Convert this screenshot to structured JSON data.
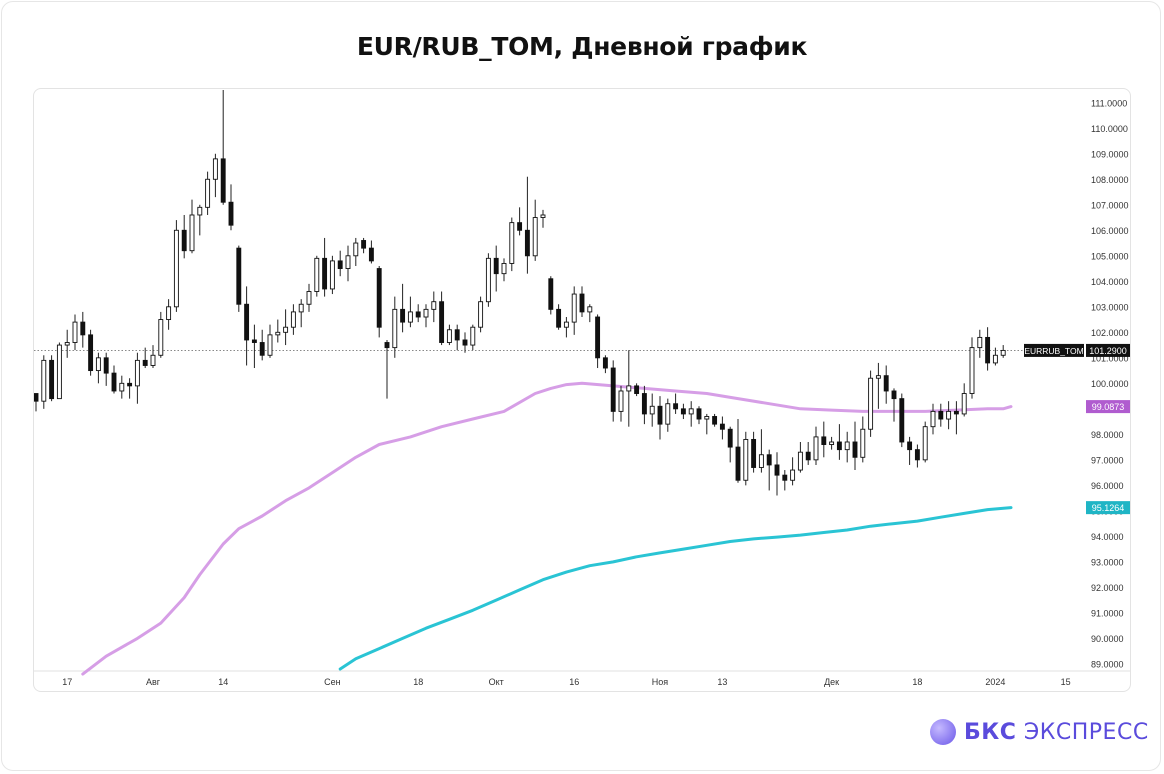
{
  "header": {
    "title": "EUR/RUB_TOM, Дневной график"
  },
  "brand": {
    "bold": "БКС",
    "rest": " ЭКСПРЕСС"
  },
  "chart_data": {
    "type": "candlestick",
    "ylim": [
      88.8,
      111.5
    ],
    "ytick_values": [
      89,
      90,
      91,
      92,
      93,
      94,
      95,
      96,
      97,
      98,
      99,
      100,
      101,
      102,
      103,
      104,
      105,
      106,
      107,
      108,
      109,
      110,
      111
    ],
    "ytick_labels": [
      "89.0000",
      "90.0000",
      "91.0000",
      "92.0000",
      "93.0000",
      "94.0000",
      "95.0000",
      "96.0000",
      "97.0000",
      "98.0000",
      "99.0000",
      "100.0000",
      "101.0000",
      "102.0000",
      "103.0000",
      "104.0000",
      "105.0000",
      "106.0000",
      "107.0000",
      "108.0000",
      "109.0000",
      "110.0000",
      "111.0000"
    ],
    "xticks": [
      {
        "label": "17",
        "index": 4
      },
      {
        "label": "Авг",
        "index": 15
      },
      {
        "label": "14",
        "index": 24
      },
      {
        "label": "Сен",
        "index": 38
      },
      {
        "label": "18",
        "index": 49
      },
      {
        "label": "Окт",
        "index": 59
      },
      {
        "label": "16",
        "index": 69
      },
      {
        "label": "Ноя",
        "index": 80
      },
      {
        "label": "13",
        "index": 88
      },
      {
        "label": "Дек",
        "index": 102
      },
      {
        "label": "18",
        "index": 113
      },
      {
        "label": "2024",
        "index": 123
      },
      {
        "label": "15",
        "index": 132
      }
    ],
    "last_price": {
      "name": "EURRUB_TOM",
      "value": "101.2900",
      "y": 101.29
    },
    "series": [
      {
        "name": "",
        "color": "#d69ee6",
        "label": "99.0873",
        "label_color": "#b05ccf",
        "last": 99.0873,
        "points": [
          [
            6,
            88.6
          ],
          [
            9,
            89.3
          ],
          [
            13,
            90.0
          ],
          [
            16,
            90.6
          ],
          [
            19,
            91.6
          ],
          [
            21,
            92.5
          ],
          [
            24,
            93.7
          ],
          [
            26,
            94.3
          ],
          [
            29,
            94.8
          ],
          [
            32,
            95.4
          ],
          [
            35,
            95.9
          ],
          [
            38,
            96.5
          ],
          [
            41,
            97.1
          ],
          [
            44,
            97.6
          ],
          [
            48,
            97.9
          ],
          [
            52,
            98.3
          ],
          [
            56,
            98.6
          ],
          [
            60,
            98.9
          ],
          [
            64,
            99.6
          ],
          [
            66,
            99.8
          ],
          [
            68,
            99.95
          ],
          [
            70,
            100.0
          ],
          [
            74,
            99.9
          ],
          [
            78,
            99.8
          ],
          [
            82,
            99.7
          ],
          [
            86,
            99.6
          ],
          [
            90,
            99.4
          ],
          [
            94,
            99.2
          ],
          [
            98,
            99.0
          ],
          [
            102,
            98.95
          ],
          [
            106,
            98.9
          ],
          [
            110,
            98.9
          ],
          [
            114,
            98.9
          ],
          [
            118,
            98.95
          ],
          [
            122,
            99.0
          ],
          [
            124,
            99.0
          ],
          [
            125,
            99.0873
          ]
        ]
      },
      {
        "name": "",
        "color": "#2ac4d4",
        "label": "95.1264",
        "label_color": "#1fb5c5",
        "last": 95.1264,
        "points": [
          [
            39,
            88.8
          ],
          [
            41,
            89.2
          ],
          [
            44,
            89.6
          ],
          [
            47,
            90.0
          ],
          [
            50,
            90.4
          ],
          [
            53,
            90.75
          ],
          [
            56,
            91.1
          ],
          [
            59,
            91.5
          ],
          [
            62,
            91.9
          ],
          [
            65,
            92.3
          ],
          [
            68,
            92.6
          ],
          [
            71,
            92.85
          ],
          [
            74,
            93.0
          ],
          [
            77,
            93.2
          ],
          [
            80,
            93.35
          ],
          [
            83,
            93.5
          ],
          [
            86,
            93.65
          ],
          [
            89,
            93.8
          ],
          [
            92,
            93.9
          ],
          [
            95,
            93.97
          ],
          [
            98,
            94.05
          ],
          [
            101,
            94.15
          ],
          [
            104,
            94.25
          ],
          [
            107,
            94.4
          ],
          [
            110,
            94.5
          ],
          [
            113,
            94.6
          ],
          [
            116,
            94.75
          ],
          [
            119,
            94.9
          ],
          [
            122,
            95.05
          ],
          [
            125,
            95.1264
          ]
        ]
      }
    ],
    "candles": [
      [
        99.6,
        99.6,
        98.9,
        99.3
      ],
      [
        99.3,
        101.1,
        99.0,
        100.9
      ],
      [
        100.9,
        101.1,
        99.3,
        99.4
      ],
      [
        99.4,
        101.6,
        99.4,
        101.5
      ],
      [
        101.5,
        102.1,
        101.0,
        101.6
      ],
      [
        101.6,
        102.7,
        101.3,
        102.4
      ],
      [
        102.4,
        102.8,
        101.4,
        101.9
      ],
      [
        101.9,
        102.1,
        100.3,
        100.5
      ],
      [
        100.5,
        101.2,
        100.0,
        101.0
      ],
      [
        101.0,
        101.2,
        99.9,
        100.4
      ],
      [
        100.4,
        100.7,
        99.6,
        99.7
      ],
      [
        99.7,
        100.3,
        99.4,
        100.0
      ],
      [
        100.0,
        100.2,
        99.4,
        99.9
      ],
      [
        99.9,
        101.2,
        99.2,
        100.9
      ],
      [
        100.9,
        101.4,
        100.6,
        100.7
      ],
      [
        100.7,
        101.5,
        100.6,
        101.1
      ],
      [
        101.1,
        102.8,
        101.0,
        102.5
      ],
      [
        102.5,
        103.3,
        102.1,
        103.0
      ],
      [
        103.0,
        106.4,
        102.8,
        106.0
      ],
      [
        106.0,
        106.6,
        104.9,
        105.2
      ],
      [
        105.2,
        107.2,
        105.1,
        106.6
      ],
      [
        106.6,
        107.0,
        105.8,
        106.9
      ],
      [
        106.9,
        108.3,
        106.6,
        108.0
      ],
      [
        108.0,
        109.0,
        107.3,
        108.8
      ],
      [
        108.8,
        111.5,
        107.0,
        107.1
      ],
      [
        107.1,
        107.8,
        106.0,
        106.2
      ],
      [
        105.3,
        105.4,
        102.8,
        103.1
      ],
      [
        103.1,
        103.8,
        100.7,
        101.7
      ],
      [
        101.7,
        102.3,
        100.6,
        101.6
      ],
      [
        101.6,
        102.1,
        100.9,
        101.1
      ],
      [
        101.1,
        102.3,
        101.0,
        101.9
      ],
      [
        101.9,
        102.5,
        101.6,
        102.0
      ],
      [
        102.0,
        102.9,
        101.5,
        102.2
      ],
      [
        102.2,
        103.1,
        101.9,
        102.8
      ],
      [
        102.8,
        103.3,
        102.2,
        103.1
      ],
      [
        103.1,
        103.9,
        102.8,
        103.6
      ],
      [
        103.6,
        105.0,
        103.4,
        104.9
      ],
      [
        104.9,
        105.7,
        103.4,
        103.7
      ],
      [
        103.7,
        105.0,
        103.5,
        104.8
      ],
      [
        104.8,
        105.2,
        104.2,
        104.5
      ],
      [
        104.5,
        105.4,
        104.0,
        105.0
      ],
      [
        105.0,
        105.7,
        104.6,
        105.5
      ],
      [
        105.6,
        105.7,
        105.1,
        105.3
      ],
      [
        105.3,
        105.6,
        104.7,
        104.8
      ],
      [
        104.5,
        104.6,
        101.8,
        102.2
      ],
      [
        101.6,
        101.7,
        99.4,
        101.4
      ],
      [
        101.4,
        103.4,
        101.0,
        102.9
      ],
      [
        102.9,
        103.9,
        102.0,
        102.4
      ],
      [
        102.4,
        103.4,
        102.2,
        102.8
      ],
      [
        102.8,
        103.1,
        102.4,
        102.6
      ],
      [
        102.6,
        103.1,
        102.2,
        102.9
      ],
      [
        102.9,
        103.6,
        102.4,
        103.2
      ],
      [
        103.2,
        103.6,
        101.5,
        101.6
      ],
      [
        101.6,
        102.3,
        101.5,
        102.1
      ],
      [
        102.1,
        102.3,
        101.3,
        101.7
      ],
      [
        101.7,
        102.0,
        101.2,
        101.5
      ],
      [
        101.5,
        102.3,
        101.3,
        102.2
      ],
      [
        102.2,
        103.4,
        102.0,
        103.2
      ],
      [
        103.2,
        105.1,
        103.0,
        104.9
      ],
      [
        104.9,
        105.4,
        103.6,
        104.3
      ],
      [
        104.3,
        104.9,
        104.0,
        104.7
      ],
      [
        104.7,
        106.5,
        104.4,
        106.3
      ],
      [
        106.3,
        106.9,
        105.8,
        106.0
      ],
      [
        106.0,
        108.1,
        104.3,
        105.0
      ],
      [
        105.0,
        107.2,
        104.8,
        106.5
      ],
      [
        106.5,
        106.8,
        106.1,
        106.6
      ],
      [
        104.1,
        104.2,
        102.7,
        102.9
      ],
      [
        102.9,
        103.1,
        102.1,
        102.2
      ],
      [
        102.2,
        102.6,
        101.8,
        102.4
      ],
      [
        102.4,
        103.8,
        101.9,
        103.5
      ],
      [
        103.5,
        103.8,
        102.6,
        102.8
      ],
      [
        102.8,
        103.1,
        102.4,
        103.0
      ],
      [
        102.6,
        102.7,
        100.6,
        101.0
      ],
      [
        101.0,
        101.1,
        100.4,
        100.6
      ],
      [
        100.6,
        100.9,
        98.5,
        98.9
      ],
      [
        98.9,
        99.9,
        98.5,
        99.7
      ],
      [
        99.7,
        101.3,
        98.3,
        99.9
      ],
      [
        99.9,
        100.0,
        99.5,
        99.6
      ],
      [
        99.6,
        99.9,
        98.4,
        98.8
      ],
      [
        98.8,
        99.6,
        98.3,
        99.1
      ],
      [
        99.1,
        99.5,
        97.8,
        98.4
      ],
      [
        98.4,
        99.4,
        98.1,
        99.2
      ],
      [
        99.2,
        99.6,
        98.8,
        99.0
      ],
      [
        99.0,
        99.2,
        98.6,
        98.8
      ],
      [
        98.8,
        99.3,
        98.3,
        99.0
      ],
      [
        99.0,
        99.1,
        98.4,
        98.6
      ],
      [
        98.6,
        98.8,
        98.0,
        98.7
      ],
      [
        98.7,
        98.8,
        98.3,
        98.4
      ],
      [
        98.4,
        98.7,
        97.8,
        98.2
      ],
      [
        98.2,
        98.3,
        96.9,
        97.5
      ],
      [
        97.5,
        98.6,
        96.1,
        96.2
      ],
      [
        96.2,
        98.1,
        96.0,
        97.8
      ],
      [
        97.8,
        98.1,
        96.5,
        96.7
      ],
      [
        96.7,
        98.2,
        96.5,
        97.2
      ],
      [
        97.2,
        97.4,
        95.8,
        96.8
      ],
      [
        96.8,
        97.3,
        95.6,
        96.4
      ],
      [
        96.4,
        96.6,
        95.8,
        96.2
      ],
      [
        96.2,
        97.1,
        96.0,
        96.6
      ],
      [
        96.6,
        97.7,
        96.5,
        97.3
      ],
      [
        97.3,
        97.7,
        96.8,
        97.0
      ],
      [
        97.0,
        98.3,
        96.8,
        97.9
      ],
      [
        97.9,
        98.5,
        97.1,
        97.6
      ],
      [
        97.6,
        97.9,
        97.4,
        97.7
      ],
      [
        97.7,
        98.4,
        97.0,
        97.4
      ],
      [
        97.4,
        98.1,
        96.9,
        97.7
      ],
      [
        97.7,
        98.5,
        96.6,
        97.1
      ],
      [
        97.1,
        98.7,
        96.9,
        98.2
      ],
      [
        98.2,
        100.5,
        97.9,
        100.2
      ],
      [
        100.2,
        100.8,
        99.0,
        100.3
      ],
      [
        100.3,
        100.7,
        99.2,
        99.7
      ],
      [
        99.7,
        99.8,
        98.5,
        99.4
      ],
      [
        99.4,
        99.6,
        97.5,
        97.7
      ],
      [
        97.7,
        97.9,
        96.8,
        97.4
      ],
      [
        97.4,
        97.6,
        96.7,
        97.0
      ],
      [
        97.0,
        98.5,
        96.9,
        98.3
      ],
      [
        98.3,
        99.2,
        98.0,
        98.9
      ],
      [
        98.9,
        99.2,
        98.3,
        98.6
      ],
      [
        98.6,
        99.3,
        98.2,
        98.9
      ],
      [
        98.9,
        99.3,
        98.0,
        98.8
      ],
      [
        98.8,
        100.0,
        98.7,
        99.6
      ],
      [
        99.6,
        101.8,
        99.4,
        101.4
      ],
      [
        101.4,
        102.1,
        101.0,
        101.8
      ],
      [
        101.8,
        102.2,
        100.5,
        100.8
      ],
      [
        100.8,
        101.4,
        100.7,
        101.1
      ],
      [
        101.1,
        101.5,
        101.0,
        101.29
      ]
    ]
  }
}
